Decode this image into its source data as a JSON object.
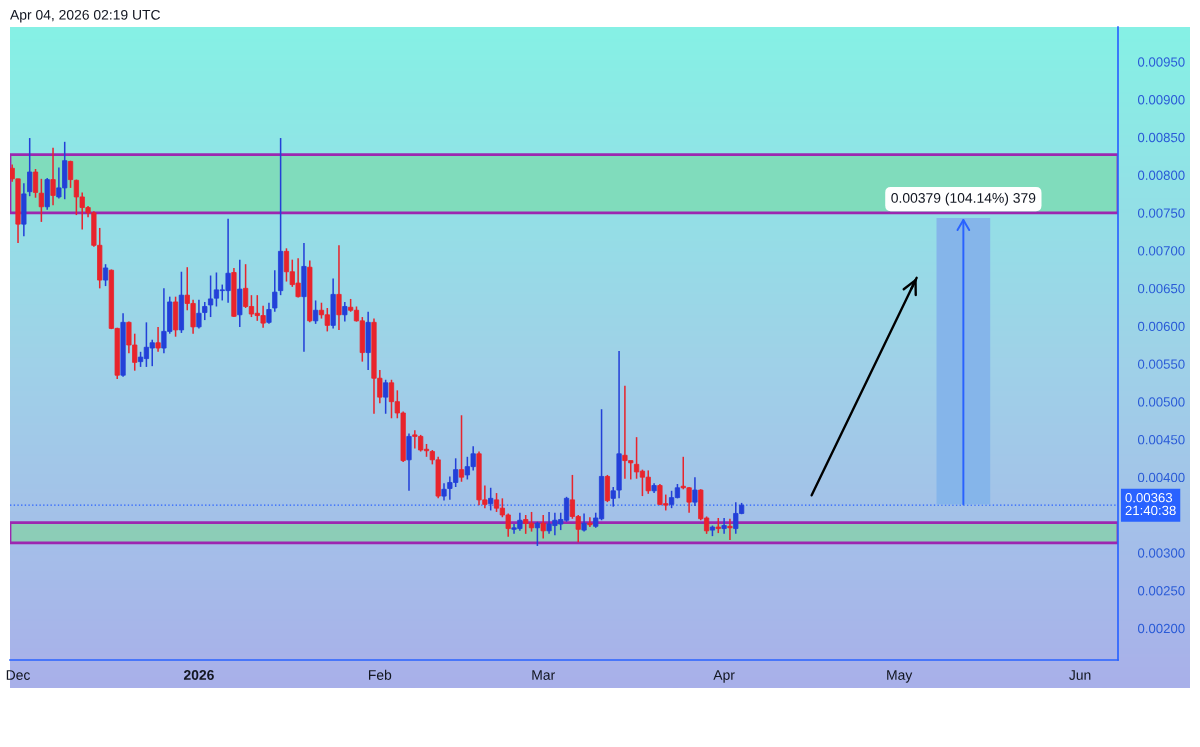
{
  "chart_data": {
    "type": "candlestick",
    "annotations": [
      "Apr 04, 2026 02:19 UTC"
    ],
    "x": [
      "2025-11-30",
      "2025-12-01",
      "2025-12-02",
      "2025-12-03",
      "2025-12-04",
      "2025-12-05",
      "2025-12-06",
      "2025-12-07",
      "2025-12-08",
      "2025-12-09",
      "2025-12-10",
      "2025-12-11",
      "2025-12-12",
      "2025-12-13",
      "2025-12-14",
      "2025-12-15",
      "2025-12-16",
      "2025-12-17",
      "2025-12-18",
      "2025-12-19",
      "2025-12-20",
      "2025-12-21",
      "2025-12-22",
      "2025-12-23",
      "2025-12-24",
      "2025-12-25",
      "2025-12-26",
      "2025-12-27",
      "2025-12-28",
      "2025-12-29",
      "2025-12-30",
      "2025-12-31",
      "2026-01-01",
      "2026-01-02",
      "2026-01-03",
      "2026-01-04",
      "2026-01-05",
      "2026-01-06",
      "2026-01-07",
      "2026-01-08",
      "2026-01-09",
      "2026-01-10",
      "2026-01-11",
      "2026-01-12",
      "2026-01-13",
      "2026-01-14",
      "2026-01-15",
      "2026-01-16",
      "2026-01-17",
      "2026-01-18",
      "2026-01-19",
      "2026-01-20",
      "2026-01-21",
      "2026-01-22",
      "2026-01-23",
      "2026-01-24",
      "2026-01-25",
      "2026-01-26",
      "2026-01-27",
      "2026-01-28",
      "2026-01-29",
      "2026-01-30",
      "2026-01-31",
      "2026-02-01",
      "2026-02-02",
      "2026-02-03",
      "2026-02-04",
      "2026-02-05",
      "2026-02-06",
      "2026-02-07",
      "2026-02-08",
      "2026-02-09",
      "2026-02-10",
      "2026-02-11",
      "2026-02-12",
      "2026-02-13",
      "2026-02-14",
      "2026-02-15",
      "2026-02-16",
      "2026-02-17",
      "2026-02-18",
      "2026-02-19",
      "2026-02-20",
      "2026-02-21",
      "2026-02-22",
      "2026-02-23",
      "2026-02-24",
      "2026-02-25",
      "2026-02-26",
      "2026-02-27",
      "2026-02-28",
      "2026-03-01",
      "2026-03-02",
      "2026-03-03",
      "2026-03-04",
      "2026-03-05",
      "2026-03-06",
      "2026-03-07",
      "2026-03-08",
      "2026-03-09",
      "2026-03-10",
      "2026-03-11",
      "2026-03-12",
      "2026-03-13",
      "2026-03-14",
      "2026-03-15",
      "2026-03-16",
      "2026-03-17",
      "2026-03-18",
      "2026-03-19",
      "2026-03-20",
      "2026-03-21",
      "2026-03-22",
      "2026-03-23",
      "2026-03-24",
      "2026-03-25",
      "2026-03-26",
      "2026-03-27",
      "2026-03-28",
      "2026-03-29",
      "2026-03-30",
      "2026-03-31",
      "2026-04-01",
      "2026-04-02",
      "2026-04-03",
      "2026-04-04"
    ],
    "ohlc": [
      [
        0.00809,
        0.00814,
        0.00791,
        0.00795
      ],
      [
        0.00795,
        0.00795,
        0.0071,
        0.00735
      ],
      [
        0.00735,
        0.00789,
        0.00719,
        0.00775
      ],
      [
        0.00778,
        0.00849,
        0.00772,
        0.00804
      ],
      [
        0.00804,
        0.00808,
        0.0077,
        0.00777
      ],
      [
        0.00776,
        0.00795,
        0.00738,
        0.00758
      ],
      [
        0.00758,
        0.00796,
        0.00754,
        0.00794
      ],
      [
        0.00794,
        0.00836,
        0.0076,
        0.00773
      ],
      [
        0.00771,
        0.0081,
        0.00769,
        0.00783
      ],
      [
        0.00783,
        0.00844,
        0.00768,
        0.00819
      ],
      [
        0.00818,
        0.00819,
        0.00783,
        0.00794
      ],
      [
        0.00793,
        0.00794,
        0.00747,
        0.00771
      ],
      [
        0.00771,
        0.00777,
        0.00728,
        0.00757
      ],
      [
        0.00757,
        0.00759,
        0.00744,
        0.0075
      ],
      [
        0.0075,
        0.00752,
        0.00705,
        0.00707
      ],
      [
        0.00707,
        0.0073,
        0.0065,
        0.00661
      ],
      [
        0.00661,
        0.00682,
        0.00653,
        0.00677
      ],
      [
        0.00674,
        0.00675,
        0.00596,
        0.00597
      ],
      [
        0.00597,
        0.00598,
        0.0053,
        0.00535
      ],
      [
        0.00535,
        0.00617,
        0.00533,
        0.00605
      ],
      [
        0.00605,
        0.00606,
        0.00564,
        0.00575
      ],
      [
        0.00575,
        0.0059,
        0.00541,
        0.00552
      ],
      [
        0.00553,
        0.00566,
        0.00546,
        0.00559
      ],
      [
        0.00557,
        0.00605,
        0.00546,
        0.00572
      ],
      [
        0.00571,
        0.00582,
        0.00547,
        0.00578
      ],
      [
        0.00578,
        0.00599,
        0.00566,
        0.00571
      ],
      [
        0.00571,
        0.0065,
        0.00564,
        0.00593
      ],
      [
        0.00593,
        0.00639,
        0.0059,
        0.00632
      ],
      [
        0.00632,
        0.00639,
        0.00586,
        0.00595
      ],
      [
        0.00595,
        0.00672,
        0.00591,
        0.00641
      ],
      [
        0.00641,
        0.00678,
        0.00621,
        0.0063
      ],
      [
        0.0063,
        0.00635,
        0.0059,
        0.00599
      ],
      [
        0.00599,
        0.00635,
        0.00597,
        0.00617
      ],
      [
        0.00618,
        0.00632,
        0.00608,
        0.00626
      ],
      [
        0.00628,
        0.00667,
        0.00612,
        0.00636
      ],
      [
        0.00637,
        0.00671,
        0.00626,
        0.00648
      ],
      [
        0.00647,
        0.00655,
        0.00634,
        0.00648
      ],
      [
        0.00647,
        0.00742,
        0.00631,
        0.0067
      ],
      [
        0.00671,
        0.00677,
        0.00612,
        0.00613
      ],
      [
        0.00615,
        0.00688,
        0.00599,
        0.00649
      ],
      [
        0.0065,
        0.00682,
        0.00624,
        0.00626
      ],
      [
        0.00626,
        0.00641,
        0.00612,
        0.00616
      ],
      [
        0.00617,
        0.00641,
        0.00607,
        0.00614
      ],
      [
        0.00614,
        0.00627,
        0.00598,
        0.00604
      ],
      [
        0.00605,
        0.00631,
        0.00603,
        0.00622
      ],
      [
        0.00624,
        0.00674,
        0.00619,
        0.00645
      ],
      [
        0.00647,
        0.00849,
        0.00641,
        0.00699
      ],
      [
        0.00699,
        0.00703,
        0.00659,
        0.00672
      ],
      [
        0.00672,
        0.00688,
        0.00652,
        0.00655
      ],
      [
        0.00657,
        0.0069,
        0.00638,
        0.00639
      ],
      [
        0.00639,
        0.0071,
        0.00566,
        0.00679
      ],
      [
        0.00678,
        0.00687,
        0.00605,
        0.00607
      ],
      [
        0.00607,
        0.00634,
        0.00603,
        0.00621
      ],
      [
        0.00621,
        0.00631,
        0.0061,
        0.00615
      ],
      [
        0.00615,
        0.00624,
        0.00593,
        0.00601
      ],
      [
        0.00601,
        0.00663,
        0.00597,
        0.00642
      ],
      [
        0.00642,
        0.00707,
        0.00595,
        0.00615
      ],
      [
        0.00615,
        0.00632,
        0.00606,
        0.00626
      ],
      [
        0.00625,
        0.00636,
        0.00619,
        0.00621
      ],
      [
        0.00621,
        0.00626,
        0.00606,
        0.00607
      ],
      [
        0.00607,
        0.00612,
        0.00553,
        0.00565
      ],
      [
        0.00565,
        0.00619,
        0.00542,
        0.00605
      ],
      [
        0.00605,
        0.0061,
        0.00484,
        0.00531
      ],
      [
        0.00531,
        0.00542,
        0.00498,
        0.00506
      ],
      [
        0.00506,
        0.00529,
        0.00484,
        0.00525
      ],
      [
        0.00525,
        0.00529,
        0.00478,
        0.005
      ],
      [
        0.005,
        0.00515,
        0.00478,
        0.00485
      ],
      [
        0.00485,
        0.00487,
        0.0042,
        0.00422
      ],
      [
        0.00423,
        0.00458,
        0.00382,
        0.00454
      ],
      [
        0.00456,
        0.00462,
        0.00438,
        0.00454
      ],
      [
        0.00454,
        0.00456,
        0.00434,
        0.00436
      ],
      [
        0.00437,
        0.00444,
        0.00427,
        0.00435
      ],
      [
        0.00434,
        0.00436,
        0.00417,
        0.00423
      ],
      [
        0.00423,
        0.00427,
        0.00372,
        0.00375
      ],
      [
        0.00375,
        0.00392,
        0.00369,
        0.00384
      ],
      [
        0.00385,
        0.00401,
        0.0037,
        0.00393
      ],
      [
        0.00393,
        0.00425,
        0.00387,
        0.0041
      ],
      [
        0.0041,
        0.00482,
        0.00394,
        0.004
      ],
      [
        0.00403,
        0.00427,
        0.00397,
        0.00414
      ],
      [
        0.00414,
        0.00441,
        0.00409,
        0.00431
      ],
      [
        0.00431,
        0.00434,
        0.00363,
        0.0037
      ],
      [
        0.0037,
        0.00389,
        0.00359,
        0.00364
      ],
      [
        0.00365,
        0.00386,
        0.00356,
        0.00372
      ],
      [
        0.0037,
        0.00379,
        0.00354,
        0.00359
      ],
      [
        0.00359,
        0.00372,
        0.00347,
        0.0035
      ],
      [
        0.0035,
        0.00352,
        0.00321,
        0.00332
      ],
      [
        0.00331,
        0.00338,
        0.00325,
        0.00333
      ],
      [
        0.00332,
        0.00353,
        0.00329,
        0.00343
      ],
      [
        0.00344,
        0.0035,
        0.00325,
        0.00339
      ],
      [
        0.00339,
        0.00354,
        0.00328,
        0.00333
      ],
      [
        0.00333,
        0.00341,
        0.00309,
        0.00339
      ],
      [
        0.00339,
        0.0035,
        0.00319,
        0.00329
      ],
      [
        0.00329,
        0.00354,
        0.00325,
        0.00338
      ],
      [
        0.00336,
        0.00353,
        0.00323,
        0.00343
      ],
      [
        0.00338,
        0.00353,
        0.0033,
        0.00344
      ],
      [
        0.00343,
        0.00374,
        0.00341,
        0.00372
      ],
      [
        0.0037,
        0.00403,
        0.00345,
        0.00348
      ],
      [
        0.00348,
        0.0035,
        0.00314,
        0.00331
      ],
      [
        0.0033,
        0.00352,
        0.00328,
        0.00339
      ],
      [
        0.00339,
        0.00347,
        0.00334,
        0.00337
      ],
      [
        0.00335,
        0.00353,
        0.00333,
        0.00346
      ],
      [
        0.00345,
        0.0049,
        0.00343,
        0.00401
      ],
      [
        0.00401,
        0.00403,
        0.00367,
        0.00369
      ],
      [
        0.00372,
        0.00387,
        0.00361,
        0.00382
      ],
      [
        0.00383,
        0.00567,
        0.00372,
        0.00431
      ],
      [
        0.00429,
        0.00521,
        0.00398,
        0.00422
      ],
      [
        0.00422,
        0.00422,
        0.00397,
        0.00419
      ],
      [
        0.00417,
        0.00453,
        0.00398,
        0.00407
      ],
      [
        0.00408,
        0.0041,
        0.00375,
        0.004
      ],
      [
        0.004,
        0.00409,
        0.00378,
        0.00382
      ],
      [
        0.00382,
        0.00392,
        0.00379,
        0.00389
      ],
      [
        0.00389,
        0.00391,
        0.00363,
        0.00364
      ],
      [
        0.00365,
        0.00377,
        0.00356,
        0.00363
      ],
      [
        0.00364,
        0.00382,
        0.00359,
        0.00373
      ],
      [
        0.00373,
        0.00391,
        0.00372,
        0.00386
      ],
      [
        0.00388,
        0.00427,
        0.00384,
        0.00386
      ],
      [
        0.00386,
        0.00387,
        0.00353,
        0.00367
      ],
      [
        0.00367,
        0.004,
        0.00362,
        0.00383
      ],
      [
        0.00383,
        0.00384,
        0.00343,
        0.00345
      ],
      [
        0.00346,
        0.00348,
        0.00325,
        0.00329
      ],
      [
        0.0033,
        0.00336,
        0.00322,
        0.00334
      ],
      [
        0.00334,
        0.00346,
        0.00326,
        0.00332
      ],
      [
        0.00332,
        0.00346,
        0.00325,
        0.00336
      ],
      [
        0.00335,
        0.00345,
        0.00317,
        0.00333
      ],
      [
        0.00332,
        0.00367,
        0.00325,
        0.00352
      ],
      [
        0.00352,
        0.00366,
        0.00351,
        0.00363
      ]
    ],
    "series": [
      {
        "type": "bar",
        "x": [
          "2026-05-12"
        ],
        "base": [
          0.00364
        ],
        "values": [
          0.00379
        ],
        "value_labels": [
          "0.00379 (104.14%) 379"
        ],
        "color": "#85b5ea"
      },
      {
        "type": "line",
        "x": [
          "2026-04-16",
          "2026-05-04"
        ],
        "values": [
          0.00376,
          0.00664
        ],
        "color": "#000000"
      }
    ],
    "bands": [
      {
        "axis": "y",
        "from": 0.0075,
        "to": 0.00827,
        "color": "#80dcbc"
      },
      {
        "axis": "y",
        "from": 0.00313,
        "to": 0.0034,
        "color": "#8ccdb7"
      }
    ],
    "ref_lines": [
      {
        "axis": "y",
        "value": 0.00363,
        "label": "0.00363\n21:40:38",
        "color": "#2962ff",
        "line_style": "dotted"
      }
    ],
    "xlim": [
      "2025-11-29T15:00",
      "2026-06-07T12:00"
    ],
    "xticks": [
      {
        "value": "2025-12-01",
        "label": "Dec"
      },
      {
        "value": "2026-01-01",
        "label": "2026"
      },
      {
        "value": "2026-02-01",
        "label": "Feb"
      },
      {
        "value": "2026-03-01",
        "label": "Mar"
      },
      {
        "value": "2026-04-01",
        "label": "Apr"
      },
      {
        "value": "2026-05-01",
        "label": "May"
      },
      {
        "value": "2026-06-01",
        "label": "Jun"
      }
    ],
    "ylim": [
      0.00158,
      0.00996
    ],
    "yticks": [
      {
        "value": 0.002,
        "label": "0.00200"
      },
      {
        "value": 0.0025,
        "label": "0.00250"
      },
      {
        "value": 0.003,
        "label": "0.00300"
      },
      {
        "value": 0.004,
        "label": "0.00400"
      },
      {
        "value": 0.0045,
        "label": "0.00450"
      },
      {
        "value": 0.005,
        "label": "0.00500"
      },
      {
        "value": 0.0055,
        "label": "0.00550"
      },
      {
        "value": 0.006,
        "label": "0.00600"
      },
      {
        "value": 0.0065,
        "label": "0.00650"
      },
      {
        "value": 0.007,
        "label": "0.00700"
      },
      {
        "value": 0.0075,
        "label": "0.00750"
      },
      {
        "value": 0.008,
        "label": "0.00800"
      },
      {
        "value": 0.0085,
        "label": "0.00850"
      },
      {
        "value": 0.009,
        "label": "0.00900"
      },
      {
        "value": 0.0095,
        "label": "0.00950"
      }
    ],
    "grid": false
  }
}
